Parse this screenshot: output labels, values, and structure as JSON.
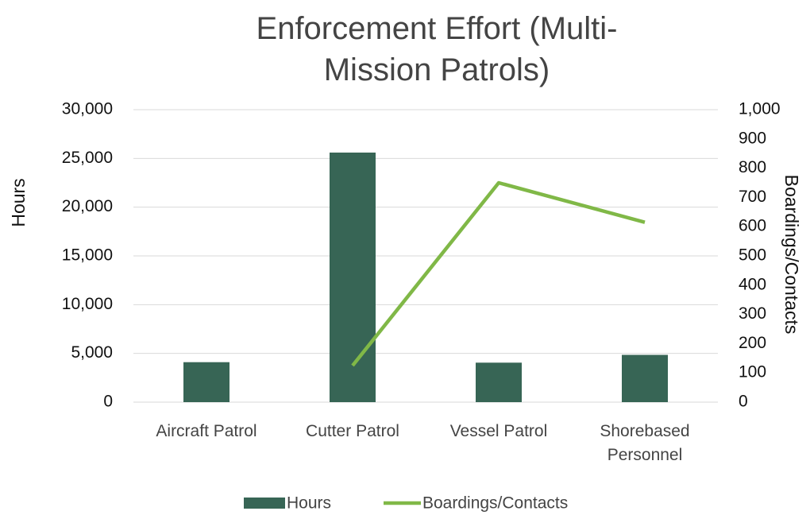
{
  "chart_data": {
    "type": "bar-line",
    "title": "Enforcement Effort (Multi-Mission Patrols)",
    "categories": [
      "Aircraft Patrol",
      "Cutter Patrol",
      "Vessel Patrol",
      "Shorebased Personnel"
    ],
    "series": [
      {
        "name": "Hours",
        "type": "bar",
        "color": "#376555",
        "values": [
          4100,
          25600,
          4050,
          4850
        ]
      },
      {
        "name": "Boardings/Contacts",
        "type": "line",
        "axis": "y2",
        "color": "#80b847",
        "values": [
          null,
          125,
          750,
          615
        ]
      }
    ],
    "ylabel": "Hours",
    "y2label": "Boardings/Contacts",
    "ylim": [
      0,
      30000
    ],
    "yticks": [
      0,
      {
        "value": 5000,
        "label": "5,000"
      },
      {
        "value": 10000,
        "label": "10,000"
      },
      {
        "value": 15000,
        "label": "15,000"
      },
      {
        "value": 20000,
        "label": "20,000"
      },
      {
        "value": 25000,
        "label": "25,000"
      },
      {
        "value": 30000,
        "label": "30,000"
      }
    ],
    "y2lim": [
      0,
      1000
    ],
    "y2ticks": [
      0,
      100,
      200,
      300,
      400,
      500,
      600,
      700,
      800,
      900,
      {
        "value": 1000,
        "label": "1,000"
      }
    ],
    "grid": true,
    "legend": "bottom"
  }
}
